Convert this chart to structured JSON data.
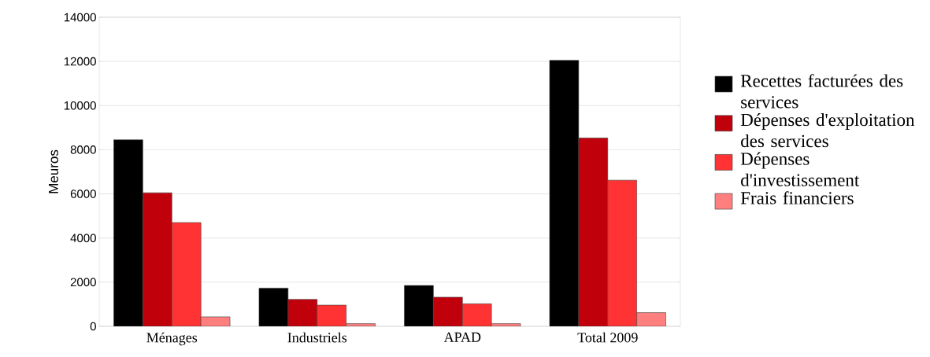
{
  "chart_data": {
    "type": "bar",
    "ylabel": "Meuros",
    "categories": [
      "Ménages",
      "Industriels",
      "APAD",
      "Total 2009"
    ],
    "series": [
      {
        "name": "Recettes facturées des services",
        "color": "#000000",
        "values": [
          8450,
          1730,
          1850,
          12050
        ]
      },
      {
        "name": "Dépenses d'exploitation des services",
        "color": "#c0000b",
        "values": [
          6050,
          1220,
          1320,
          8530
        ]
      },
      {
        "name": "Dépenses d'investissement",
        "color": "#ff3333",
        "values": [
          4700,
          960,
          1020,
          6620
        ]
      },
      {
        "name": "Frais financiers",
        "color": "#ff7f7f",
        "values": [
          430,
          120,
          120,
          620
        ]
      }
    ],
    "ylim": [
      0,
      14000
    ],
    "yticks": [
      0,
      2000,
      4000,
      6000,
      8000,
      10000,
      12000,
      14000
    ],
    "grid": "y",
    "legend": "right"
  }
}
